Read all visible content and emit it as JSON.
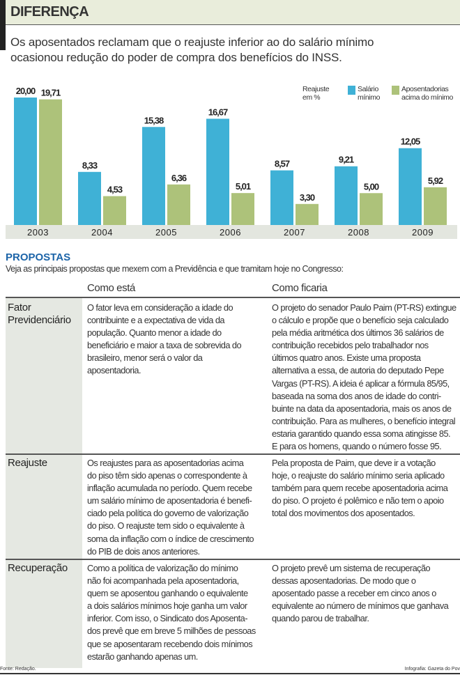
{
  "header": {
    "title": "DIFERENÇA",
    "subtitle": "Os aposentados reclamam que o reajuste inferior ao do salário mínimo\nocasionou redução do poder de compra dos benefícios do INSS."
  },
  "chart_data": {
    "type": "bar",
    "categories": [
      "2003",
      "2004",
      "2005",
      "2006",
      "2007",
      "2008",
      "2009"
    ],
    "series": [
      {
        "name": "Salário mínimo",
        "values": [
          20.0,
          8.33,
          15.38,
          16.67,
          8.57,
          9.21,
          12.05
        ],
        "labels": [
          "20,00",
          "8,33",
          "15,38",
          "16,67",
          "8,57",
          "9,21",
          "12,05"
        ],
        "color": "#3fb1d6"
      },
      {
        "name": "Aposentadorias acima do mínimo",
        "values": [
          19.71,
          4.53,
          6.36,
          5.01,
          3.3,
          5.0,
          5.92
        ],
        "labels": [
          "19,71",
          "4,53",
          "6,36",
          "5,01",
          "3,30",
          "5,00",
          "5,92"
        ],
        "color": "#adc27a"
      }
    ],
    "ylabel": "Reajuste em %",
    "legend_placement": "top-right",
    "grid": false
  },
  "legend": {
    "unit": "Reajuste\nem %",
    "s1": "Salário\nmínimo",
    "s2": "Aposentadorias\nacima do mínimo"
  },
  "proposals": {
    "title": "PROPOSTAS",
    "subtitle": "Veja as principais propostas que mexem com a Previdência e que tramitam hoje no Congresso:",
    "col1": "Como está",
    "col2": "Como ficaria",
    "rows": [
      {
        "label": "Fator\nPrevidenciário",
        "now": "O fator leva em consideração a idade do\ncontribuinte e a expectativa de vida da\npopulação. Quanto menor a idade do\nbeneficiário e maior a taxa de sobrevida do\nbrasileiro, menor será o valor da\naposentadoria.",
        "would": "O projeto do senador Paulo Paim (PT-RS) extingue\no cálculo e propõe que o benefício seja calculado\npela média aritmética dos últimos 36 salários de\ncontribuição recebidos pelo trabalhador nos\núltimos quatro anos. Existe uma proposta\nalternativa a essa, de autoria do deputado Pepe\nVargas (PT-RS). A ideia é aplicar a fórmula 85/95,\nbaseada na soma dos anos de idade do contri-\nbuinte na data da aposentadoria, mais os anos de\ncontribuição. Para as mulheres, o benefício integral\nestaria garantido quando essa soma atingisse 85.\nE para os homens, quando o número fosse 95."
      },
      {
        "label": "Reajuste",
        "now": "Os reajustes para as aposentadorias acima\ndo piso têm sido apenas o correspondente à\ninflação acumulada no período. Quem recebe\num salário mínimo de aposentadoria é benefi-\nciado pela política do governo de valorização\ndo piso. O reajuste tem sido o equivalente à\nsoma da inflação com o índice de crescimento\ndo PIB de dois anos anteriores.",
        "would": "Pela proposta de Paim, que deve ir a votação\nhoje, o reajuste do salário mínimo seria aplicado\ntambém para quem recebe aposentadoria acima\ndo piso. O projeto é polêmico e não tem o apoio\ntotal dos movimentos dos aposentados."
      },
      {
        "label": "Recuperação",
        "now": "Como a política de valorização do mínimo\nnão foi acompanhada pela aposentadoria,\nquem se aposentou ganhando o equivalente\na dois salários mínimos hoje ganha um valor\ninferior. Com isso, o Sindicato dos Aposenta-\ndos prevê que em breve 5 milhões de pessoas\nque se aposentaram recebendo dois mínimos\nestarão ganhando apenas um.",
        "would": "O projeto prevê um sistema de recuperação\ndessas aposentadorias. De modo que o\naposentado passe a receber em cinco anos o\nequivalente ao número de mínimos que ganhava\nquando parou de trabalhar."
      }
    ]
  },
  "footer": {
    "source": "Fonte: Redação.",
    "credit": "Infografia: Gazeta do Pov"
  }
}
